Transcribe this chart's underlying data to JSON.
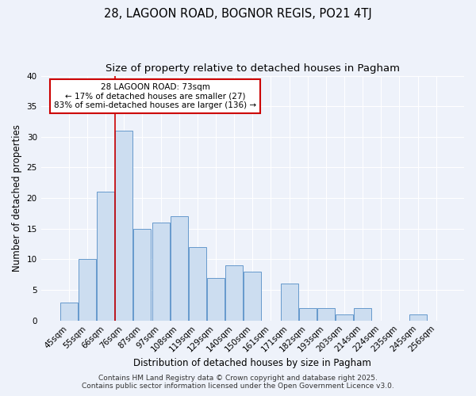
{
  "title_line1": "28, LAGOON ROAD, BOGNOR REGIS, PO21 4TJ",
  "title_line2": "Size of property relative to detached houses in Pagham",
  "xlabel": "Distribution of detached houses by size in Pagham",
  "ylabel": "Number of detached properties",
  "categories": [
    "45sqm",
    "55sqm",
    "66sqm",
    "76sqm",
    "87sqm",
    "97sqm",
    "108sqm",
    "119sqm",
    "129sqm",
    "140sqm",
    "150sqm",
    "161sqm",
    "171sqm",
    "182sqm",
    "193sqm",
    "203sqm",
    "214sqm",
    "224sqm",
    "235sqm",
    "245sqm",
    "256sqm"
  ],
  "values": [
    3,
    10,
    21,
    31,
    15,
    16,
    17,
    12,
    7,
    9,
    8,
    0,
    6,
    2,
    2,
    1,
    2,
    0,
    0,
    1,
    0
  ],
  "bar_color": "#ccddf0",
  "bar_edge_color": "#6699cc",
  "vline_color": "#cc0000",
  "vline_x_index": 3,
  "ylim": [
    0,
    40
  ],
  "yticks": [
    0,
    5,
    10,
    15,
    20,
    25,
    30,
    35,
    40
  ],
  "annotation_title": "28 LAGOON ROAD: 73sqm",
  "annotation_line1": "← 17% of detached houses are smaller (27)",
  "annotation_line2": "83% of semi-detached houses are larger (136) →",
  "footer_line1": "Contains HM Land Registry data © Crown copyright and database right 2025.",
  "footer_line2": "Contains public sector information licensed under the Open Government Licence v3.0.",
  "background_color": "#eef2fa",
  "grid_color": "#ffffff",
  "title_fontsize": 10.5,
  "subtitle_fontsize": 9.5,
  "axis_label_fontsize": 8.5,
  "tick_fontsize": 7.5,
  "annotation_fontsize": 7.5,
  "footer_fontsize": 6.5
}
